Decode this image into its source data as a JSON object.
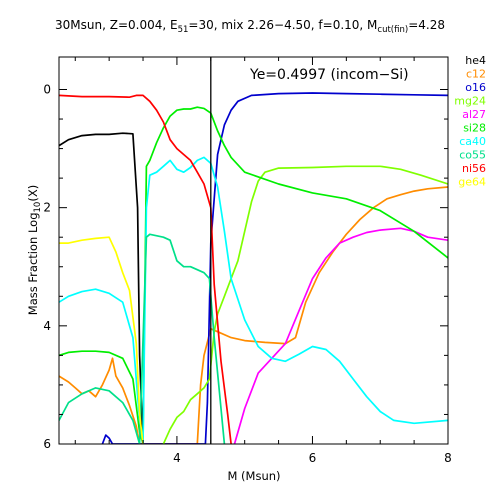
{
  "chart_data": {
    "type": "line",
    "title": {
      "pre": "30Msun, Z=0.004, E",
      "e_sub": "51",
      "mid": "=30, mix 2.26−4.50, f=0.10, M",
      "m_sub": "cut(fin)",
      "post": "=4.28"
    },
    "xlabel": "M (Msun)",
    "ylabel": {
      "pre": "Mass Fraction Log",
      "sub": "10",
      "post": "(X)"
    },
    "xlim": [
      2.26,
      8.0
    ],
    "ylim": [
      -6.0,
      0.55
    ],
    "xticks": [
      4,
      6,
      8
    ],
    "yticks": [
      0,
      -2,
      -4,
      -6
    ],
    "xtick_labels": [
      "4",
      "6",
      "8"
    ],
    "ytick_labels": [
      "0",
      "2",
      "4",
      "6"
    ],
    "annotation": "Ye=0.4997 (incom−Si)",
    "vline_x": 4.5,
    "legend_position": "right, outside plot",
    "series": [
      {
        "name": "he4",
        "color": "#000000",
        "points": [
          [
            2.26,
            -0.95
          ],
          [
            2.4,
            -0.85
          ],
          [
            2.6,
            -0.78
          ],
          [
            2.8,
            -0.76
          ],
          [
            3.0,
            -0.76
          ],
          [
            3.2,
            -0.74
          ],
          [
            3.35,
            -0.75
          ],
          [
            3.42,
            -2.0
          ],
          [
            3.45,
            -4.5
          ],
          [
            3.5,
            -6.0
          ]
        ]
      },
      {
        "name": "c12",
        "color": "#ff8c00",
        "points": [
          [
            2.26,
            -4.85
          ],
          [
            2.4,
            -4.95
          ],
          [
            2.5,
            -5.05
          ],
          [
            2.6,
            -5.15
          ],
          [
            2.7,
            -5.1
          ],
          [
            2.8,
            -5.2
          ],
          [
            2.9,
            -5.0
          ],
          [
            3.0,
            -4.75
          ],
          [
            3.05,
            -4.55
          ],
          [
            3.1,
            -4.85
          ],
          [
            3.2,
            -5.05
          ],
          [
            3.3,
            -5.35
          ],
          [
            3.4,
            -5.7
          ],
          [
            3.45,
            -6.0
          ],
          [
            4.3,
            -6.0
          ],
          [
            4.35,
            -5.0
          ],
          [
            4.4,
            -4.5
          ],
          [
            4.5,
            -4.05
          ],
          [
            4.6,
            -4.1
          ],
          [
            4.8,
            -4.2
          ],
          [
            5.0,
            -4.25
          ],
          [
            5.3,
            -4.28
          ],
          [
            5.6,
            -4.3
          ],
          [
            5.75,
            -4.2
          ],
          [
            5.9,
            -3.6
          ],
          [
            6.1,
            -3.1
          ],
          [
            6.3,
            -2.75
          ],
          [
            6.5,
            -2.45
          ],
          [
            6.7,
            -2.2
          ],
          [
            6.9,
            -2.0
          ],
          [
            7.1,
            -1.85
          ],
          [
            7.3,
            -1.78
          ],
          [
            7.5,
            -1.72
          ],
          [
            7.7,
            -1.68
          ],
          [
            8.0,
            -1.65
          ]
        ]
      },
      {
        "name": "o16",
        "color": "#0000cd",
        "points": [
          [
            2.9,
            -6.0
          ],
          [
            2.95,
            -5.85
          ],
          [
            3.0,
            -5.9
          ],
          [
            3.05,
            -6.0
          ],
          [
            4.42,
            -6.0
          ],
          [
            4.45,
            -5.3
          ],
          [
            4.5,
            -2.6
          ],
          [
            4.6,
            -1.1
          ],
          [
            4.7,
            -0.6
          ],
          [
            4.8,
            -0.35
          ],
          [
            4.9,
            -0.2
          ],
          [
            5.1,
            -0.1
          ],
          [
            5.5,
            -0.07
          ],
          [
            6.0,
            -0.06
          ],
          [
            6.5,
            -0.07
          ],
          [
            7.0,
            -0.08
          ],
          [
            7.5,
            -0.09
          ],
          [
            8.0,
            -0.1
          ]
        ]
      },
      {
        "name": "mg24",
        "color": "#7fff00",
        "points": [
          [
            3.8,
            -6.0
          ],
          [
            3.9,
            -5.75
          ],
          [
            4.0,
            -5.55
          ],
          [
            4.1,
            -5.45
          ],
          [
            4.2,
            -5.25
          ],
          [
            4.3,
            -5.15
          ],
          [
            4.4,
            -5.05
          ],
          [
            4.48,
            -4.9
          ],
          [
            4.55,
            -4.1
          ],
          [
            4.6,
            -3.8
          ],
          [
            4.7,
            -3.5
          ],
          [
            4.8,
            -3.2
          ],
          [
            4.9,
            -2.9
          ],
          [
            5.0,
            -2.4
          ],
          [
            5.1,
            -1.9
          ],
          [
            5.2,
            -1.55
          ],
          [
            5.3,
            -1.4
          ],
          [
            5.5,
            -1.33
          ],
          [
            6.0,
            -1.32
          ],
          [
            6.5,
            -1.3
          ],
          [
            7.0,
            -1.3
          ],
          [
            7.3,
            -1.35
          ],
          [
            7.6,
            -1.45
          ],
          [
            8.0,
            -1.6
          ]
        ]
      },
      {
        "name": "al27",
        "color": "#ff00ff",
        "points": [
          [
            4.85,
            -6.0
          ],
          [
            5.0,
            -5.4
          ],
          [
            5.2,
            -4.8
          ],
          [
            5.4,
            -4.55
          ],
          [
            5.6,
            -4.3
          ],
          [
            5.8,
            -3.75
          ],
          [
            6.0,
            -3.2
          ],
          [
            6.2,
            -2.85
          ],
          [
            6.4,
            -2.6
          ],
          [
            6.6,
            -2.5
          ],
          [
            6.8,
            -2.42
          ],
          [
            7.0,
            -2.38
          ],
          [
            7.3,
            -2.35
          ],
          [
            7.5,
            -2.4
          ],
          [
            7.7,
            -2.5
          ],
          [
            8.0,
            -2.55
          ]
        ]
      },
      {
        "name": "si28",
        "color": "#00ee00",
        "points": [
          [
            2.26,
            -4.5
          ],
          [
            2.4,
            -4.45
          ],
          [
            2.6,
            -4.43
          ],
          [
            2.8,
            -4.43
          ],
          [
            3.0,
            -4.45
          ],
          [
            3.2,
            -4.55
          ],
          [
            3.35,
            -4.9
          ],
          [
            3.45,
            -5.8
          ],
          [
            3.5,
            -6.0
          ],
          [
            3.52,
            -4.0
          ],
          [
            3.55,
            -1.3
          ],
          [
            3.6,
            -1.2
          ],
          [
            3.7,
            -0.9
          ],
          [
            3.8,
            -0.65
          ],
          [
            3.9,
            -0.45
          ],
          [
            4.0,
            -0.35
          ],
          [
            4.1,
            -0.33
          ],
          [
            4.2,
            -0.33
          ],
          [
            4.3,
            -0.3
          ],
          [
            4.4,
            -0.32
          ],
          [
            4.5,
            -0.4
          ],
          [
            4.6,
            -0.7
          ],
          [
            4.7,
            -0.95
          ],
          [
            4.8,
            -1.15
          ],
          [
            5.0,
            -1.4
          ],
          [
            5.5,
            -1.6
          ],
          [
            6.0,
            -1.75
          ],
          [
            6.5,
            -1.85
          ],
          [
            7.0,
            -2.05
          ],
          [
            7.5,
            -2.4
          ],
          [
            8.0,
            -2.85
          ]
        ]
      },
      {
        "name": "ca40",
        "color": "#00ffff",
        "points": [
          [
            2.26,
            -3.6
          ],
          [
            2.4,
            -3.5
          ],
          [
            2.6,
            -3.42
          ],
          [
            2.8,
            -3.38
          ],
          [
            3.0,
            -3.45
          ],
          [
            3.2,
            -3.6
          ],
          [
            3.35,
            -4.2
          ],
          [
            3.45,
            -5.6
          ],
          [
            3.5,
            -6.0
          ],
          [
            3.55,
            -2.0
          ],
          [
            3.6,
            -1.45
          ],
          [
            3.7,
            -1.4
          ],
          [
            3.8,
            -1.3
          ],
          [
            3.9,
            -1.2
          ],
          [
            4.0,
            -1.35
          ],
          [
            4.1,
            -1.4
          ],
          [
            4.2,
            -1.32
          ],
          [
            4.3,
            -1.2
          ],
          [
            4.4,
            -1.15
          ],
          [
            4.5,
            -1.25
          ],
          [
            4.6,
            -1.65
          ],
          [
            4.7,
            -2.4
          ],
          [
            4.8,
            -3.2
          ],
          [
            5.0,
            -3.9
          ],
          [
            5.2,
            -4.35
          ],
          [
            5.4,
            -4.55
          ],
          [
            5.6,
            -4.6
          ],
          [
            5.8,
            -4.48
          ],
          [
            6.0,
            -4.35
          ],
          [
            6.2,
            -4.4
          ],
          [
            6.4,
            -4.6
          ],
          [
            6.6,
            -4.9
          ],
          [
            6.8,
            -5.2
          ],
          [
            7.0,
            -5.45
          ],
          [
            7.2,
            -5.6
          ],
          [
            7.5,
            -5.65
          ],
          [
            8.0,
            -5.6
          ]
        ]
      },
      {
        "name": "co55",
        "color": "#00e08a",
        "points": [
          [
            2.26,
            -5.6
          ],
          [
            2.4,
            -5.3
          ],
          [
            2.6,
            -5.15
          ],
          [
            2.8,
            -5.05
          ],
          [
            3.0,
            -5.1
          ],
          [
            3.2,
            -5.3
          ],
          [
            3.35,
            -5.6
          ],
          [
            3.45,
            -6.0
          ],
          [
            3.55,
            -2.5
          ],
          [
            3.6,
            -2.45
          ],
          [
            3.8,
            -2.5
          ],
          [
            3.9,
            -2.55
          ],
          [
            4.0,
            -2.9
          ],
          [
            4.1,
            -3.0
          ],
          [
            4.2,
            -3.0
          ],
          [
            4.3,
            -3.05
          ],
          [
            4.4,
            -3.1
          ],
          [
            4.48,
            -3.2
          ],
          [
            4.55,
            -4.2
          ],
          [
            4.7,
            -6.0
          ]
        ]
      },
      {
        "name": "ni56",
        "color": "#ff0000",
        "points": [
          [
            2.26,
            -0.1
          ],
          [
            2.6,
            -0.12
          ],
          [
            3.0,
            -0.12
          ],
          [
            3.3,
            -0.13
          ],
          [
            3.4,
            -0.1
          ],
          [
            3.5,
            -0.1
          ],
          [
            3.6,
            -0.2
          ],
          [
            3.7,
            -0.35
          ],
          [
            3.8,
            -0.55
          ],
          [
            3.9,
            -0.85
          ],
          [
            4.0,
            -1.0
          ],
          [
            4.1,
            -1.1
          ],
          [
            4.2,
            -1.2
          ],
          [
            4.3,
            -1.4
          ],
          [
            4.4,
            -1.6
          ],
          [
            4.5,
            -2.0
          ],
          [
            4.55,
            -3.3
          ],
          [
            4.65,
            -4.6
          ],
          [
            4.75,
            -5.5
          ],
          [
            4.8,
            -6.0
          ]
        ]
      },
      {
        "name": "ge64",
        "color": "#ffff00",
        "points": [
          [
            2.26,
            -2.6
          ],
          [
            2.4,
            -2.6
          ],
          [
            2.6,
            -2.55
          ],
          [
            2.8,
            -2.52
          ],
          [
            3.0,
            -2.5
          ],
          [
            3.1,
            -2.75
          ],
          [
            3.2,
            -3.1
          ],
          [
            3.3,
            -3.4
          ],
          [
            3.4,
            -4.3
          ],
          [
            3.45,
            -5.5
          ],
          [
            3.5,
            -6.0
          ]
        ]
      }
    ]
  }
}
